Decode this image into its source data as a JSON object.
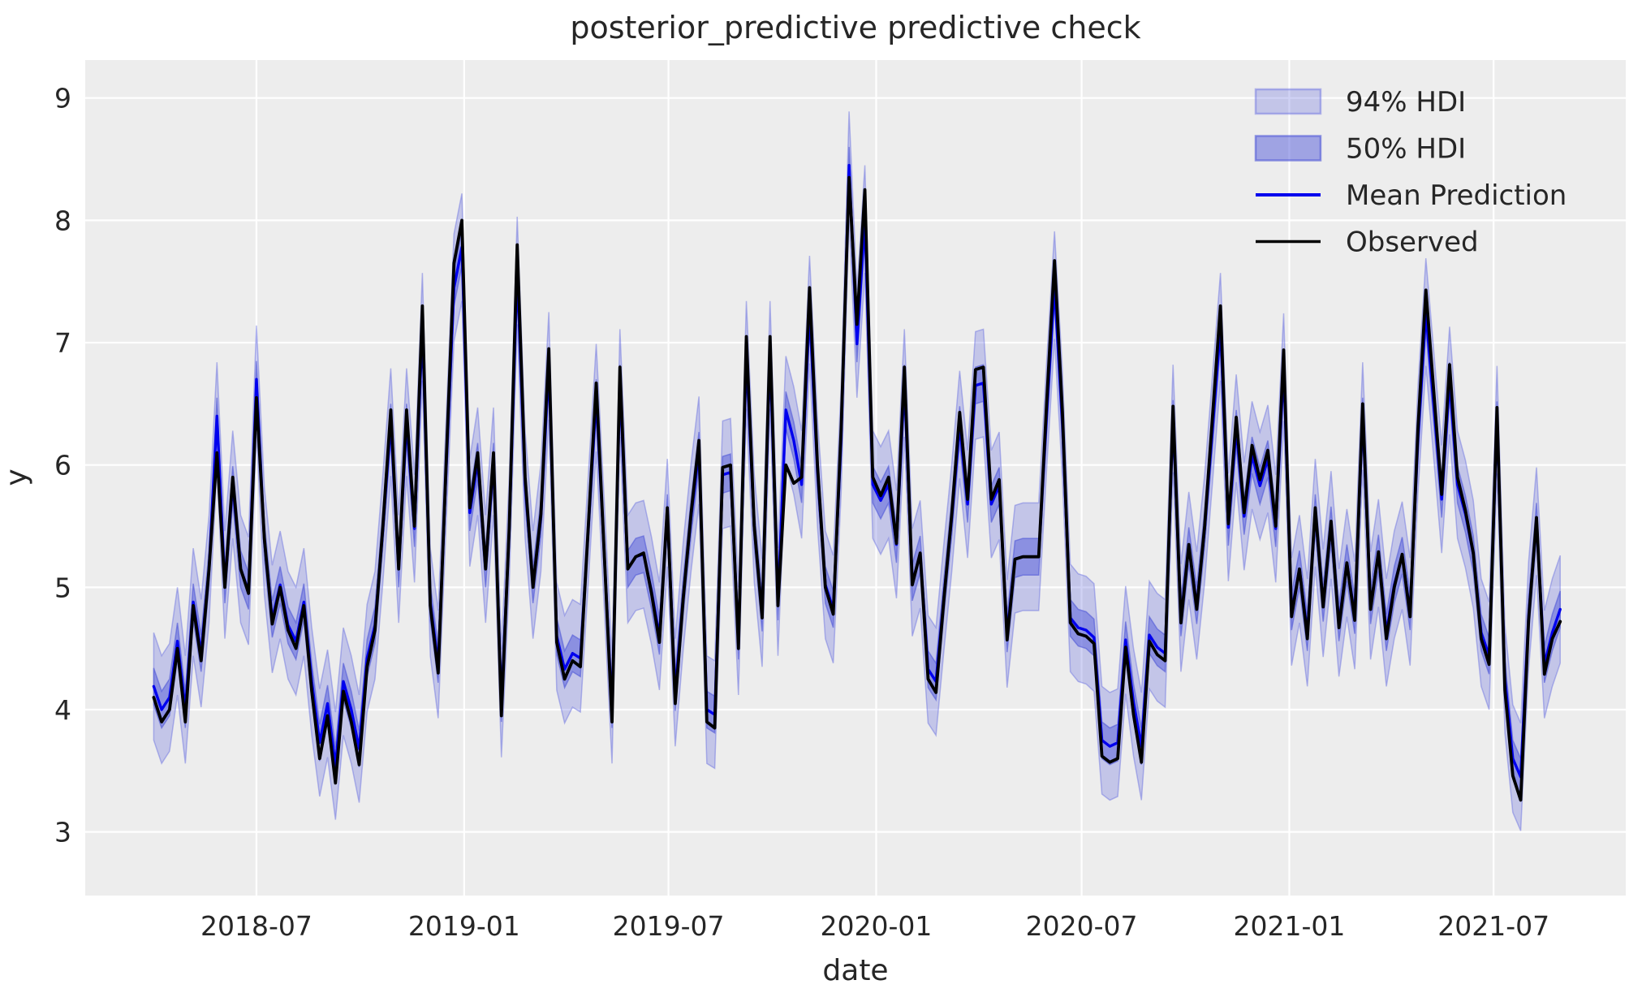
{
  "title": "posterior_predictive predictive check",
  "axes": {
    "xlabel": "date",
    "ylabel": "y",
    "yticks": [
      3,
      4,
      5,
      6,
      7,
      8,
      9
    ],
    "xticks": [
      {
        "label": "2018-07",
        "date": "2018-07-01"
      },
      {
        "label": "2019-01",
        "date": "2019-01-01"
      },
      {
        "label": "2019-07",
        "date": "2019-07-01"
      },
      {
        "label": "2020-01",
        "date": "2020-01-01"
      },
      {
        "label": "2020-07",
        "date": "2020-07-01"
      },
      {
        "label": "2021-01",
        "date": "2021-01-01"
      },
      {
        "label": "2021-07",
        "date": "2021-07-01"
      }
    ]
  },
  "colors": {
    "figure_bg": "#ffffff",
    "axes_bg": "#ededed",
    "grid": "#ffffff",
    "text": "#262626",
    "observed": "#000000",
    "mean": "#0000ee",
    "hdi94_fill": "rgba(100,107,223,0.30)",
    "hdi94_edge": "rgba(100,107,223,0.45)",
    "hdi50_fill": "rgba(88,96,219,0.52)",
    "hdi50_edge": "rgba(80,88,215,0.60)"
  },
  "legend": {
    "items": [
      {
        "label": "94% HDI",
        "type": "band",
        "band": "hdi94"
      },
      {
        "label": "50% HDI",
        "type": "band",
        "band": "hdi50"
      },
      {
        "label": "Mean Prediction",
        "type": "line",
        "series": "mean"
      },
      {
        "label": "Observed",
        "type": "line",
        "series": "observed"
      }
    ]
  },
  "chart_data": {
    "type": "line",
    "title": "posterior_predictive predictive check",
    "xlabel": "date",
    "ylabel": "y",
    "grid": true,
    "legend_position": "upper right",
    "x_start": "2018-04-01",
    "x_step_days": 7,
    "n_points": 179,
    "xlim": [
      "2018-01-31",
      "2021-10-26"
    ],
    "ylim": [
      2.48,
      9.31
    ],
    "bands": [
      {
        "name": "94% HDI",
        "around": "mean",
        "halfwidth": 0.44
      },
      {
        "name": "50% HDI",
        "around": "mean",
        "halfwidth": 0.15
      }
    ],
    "series": [
      {
        "name": "Observed",
        "values": [
          4.1,
          3.9,
          4.0,
          4.5,
          3.9,
          4.85,
          4.4,
          5.15,
          6.1,
          5.0,
          5.9,
          5.15,
          4.95,
          6.55,
          5.4,
          4.7,
          5.0,
          4.65,
          4.5,
          4.85,
          4.15,
          3.6,
          3.95,
          3.4,
          4.15,
          3.9,
          3.55,
          4.35,
          4.65,
          5.5,
          6.45,
          5.15,
          6.45,
          5.5,
          7.3,
          4.85,
          4.3,
          6.0,
          7.65,
          8.0,
          5.65,
          6.1,
          5.15,
          6.1,
          3.95,
          5.5,
          7.8,
          5.9,
          5.0,
          5.6,
          6.95,
          4.55,
          4.25,
          4.4,
          4.35,
          5.5,
          6.67,
          5.3,
          3.9,
          6.8,
          5.15,
          5.25,
          5.28,
          4.95,
          4.55,
          5.65,
          4.05,
          4.9,
          5.6,
          6.2,
          3.9,
          3.85,
          5.98,
          6.0,
          4.5,
          7.05,
          5.5,
          4.75,
          7.05,
          4.85,
          6.0,
          5.85,
          5.9,
          7.45,
          6.0,
          5.0,
          4.78,
          6.3,
          8.35,
          7.15,
          8.25,
          5.9,
          5.75,
          5.9,
          5.36,
          6.8,
          5.02,
          5.28,
          4.25,
          4.14,
          4.9,
          5.6,
          6.43,
          5.72,
          6.78,
          6.8,
          5.72,
          5.88,
          4.57,
          5.23,
          5.25,
          5.25,
          5.25,
          6.5,
          7.67,
          6.43,
          4.71,
          4.62,
          4.6,
          4.54,
          3.62,
          3.57,
          3.6,
          4.51,
          3.96,
          3.57,
          4.56,
          4.45,
          4.4,
          6.48,
          4.71,
          5.35,
          4.82,
          5.5,
          6.4,
          7.3,
          5.52,
          6.39,
          5.61,
          6.16,
          5.88,
          6.12,
          5.5,
          6.94,
          4.76,
          5.15,
          4.58,
          5.65,
          4.84,
          5.54,
          4.67,
          5.2,
          4.73,
          6.5,
          4.82,
          5.29,
          4.58,
          5.0,
          5.27,
          4.76,
          6.3,
          7.43,
          6.6,
          5.76,
          6.82,
          5.9,
          5.63,
          5.28,
          4.58,
          4.37,
          6.47,
          4.16,
          3.46,
          3.26,
          4.73,
          5.57,
          4.29,
          4.58,
          4.72
        ]
      },
      {
        "name": "Mean Prediction",
        "values": [
          4.19,
          4.0,
          4.1,
          4.56,
          4.0,
          4.88,
          4.46,
          5.15,
          6.4,
          5.02,
          5.84,
          5.15,
          4.97,
          6.7,
          5.38,
          4.74,
          5.02,
          4.69,
          4.56,
          4.88,
          4.23,
          3.73,
          4.05,
          3.54,
          4.23,
          4.0,
          3.68,
          4.42,
          4.69,
          5.48,
          6.35,
          5.15,
          6.35,
          5.48,
          7.13,
          4.88,
          4.37,
          5.94,
          7.45,
          7.78,
          5.61,
          6.03,
          5.15,
          6.03,
          4.05,
          5.48,
          7.59,
          5.84,
          5.02,
          5.57,
          6.81,
          4.6,
          4.33,
          4.46,
          4.42,
          5.48,
          6.55,
          5.29,
          4.0,
          6.67,
          5.15,
          5.25,
          5.27,
          4.97,
          4.6,
          5.61,
          4.14,
          4.92,
          5.57,
          6.12,
          4.0,
          3.96,
          5.92,
          5.94,
          4.56,
          6.9,
          5.48,
          4.79,
          6.9,
          4.88,
          6.45,
          6.2,
          5.84,
          7.27,
          5.94,
          5.02,
          4.82,
          6.21,
          8.45,
          6.99,
          8.01,
          5.84,
          5.71,
          5.84,
          5.35,
          6.67,
          5.04,
          5.27,
          4.33,
          4.23,
          4.92,
          5.57,
          6.33,
          5.68,
          6.65,
          6.67,
          5.68,
          5.83,
          4.62,
          5.23,
          5.25,
          5.25,
          5.25,
          6.4,
          7.47,
          6.33,
          4.75,
          4.67,
          4.65,
          4.59,
          3.75,
          3.7,
          3.73,
          4.57,
          4.06,
          3.7,
          4.61,
          4.51,
          4.46,
          6.38,
          4.75,
          5.34,
          4.85,
          5.48,
          6.3,
          7.13,
          5.49,
          6.3,
          5.58,
          6.08,
          5.83,
          6.05,
          5.48,
          6.8,
          4.8,
          5.15,
          4.63,
          5.61,
          4.87,
          5.51,
          4.71,
          5.2,
          4.77,
          6.4,
          4.85,
          5.28,
          4.63,
          5.02,
          5.26,
          4.8,
          6.21,
          7.25,
          6.49,
          5.72,
          6.69,
          5.84,
          5.6,
          5.27,
          4.63,
          4.44,
          6.37,
          4.25,
          3.6,
          3.45,
          4.77,
          5.54,
          4.37,
          4.63,
          4.82
        ]
      }
    ]
  }
}
